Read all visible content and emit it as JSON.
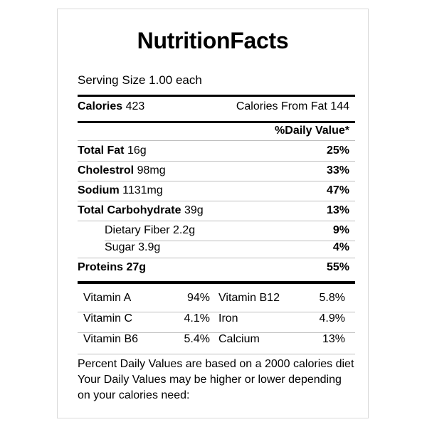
{
  "title": "NutritionFacts",
  "serving": "Serving Size 1.00 each",
  "calories": {
    "label": "Calories",
    "value": "423",
    "from_fat": "Calories From Fat 144"
  },
  "daily_value_header": "%Daily Value*",
  "nutrients": [
    {
      "name": "Total Fat",
      "amount": "16g",
      "dv": "25%"
    },
    {
      "name": "Cholestrol",
      "amount": "98mg",
      "dv": "33%"
    },
    {
      "name": "Sodium",
      "amount": "1131mg",
      "dv": "47%"
    },
    {
      "name": "Total Carbohydrate",
      "amount": "39g",
      "dv": "13%"
    },
    {
      "name": "Dietary Fiber",
      "amount": "2.2g",
      "dv": "9%"
    },
    {
      "name": "Sugar",
      "amount": "3.9g",
      "dv": "4%"
    },
    {
      "name": "Proteins",
      "amount": "27g",
      "dv": "55%"
    }
  ],
  "vitamins": [
    {
      "name": "Vitamin A",
      "value": "94%"
    },
    {
      "name": "Vitamin B12",
      "value": "5.8%"
    },
    {
      "name": "Vitamin C",
      "value": "4.1%"
    },
    {
      "name": "Iron",
      "value": "4.9%"
    },
    {
      "name": "Vitamin B6",
      "value": "5.4%"
    },
    {
      "name": "Calcium",
      "value": "13%"
    }
  ],
  "footnote": "Percent Daily Values are based on a 2000 calories diet Your Daily Values may be higher or lower depending on your calories need:"
}
